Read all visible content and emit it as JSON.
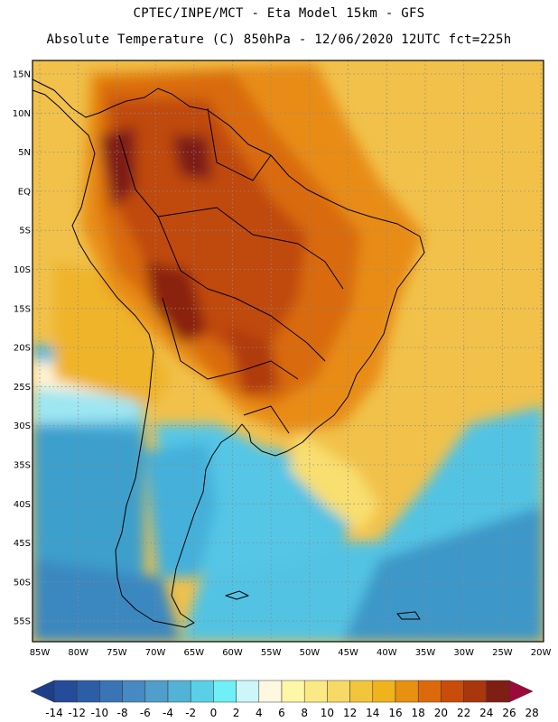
{
  "title_line1": "CPTEC/INPE/MCT -  Eta Model 15km - GFS",
  "title_line2": "Absolute Temperature (C) 850hPa - 12/06/2020 12UTC fct=225h",
  "lat_labels": [
    "15N",
    "10N",
    "5N",
    "EQ",
    "5S",
    "10S",
    "15S",
    "20S",
    "25S",
    "30S",
    "35S",
    "40S",
    "45S",
    "50S",
    "55S"
  ],
  "lon_labels": [
    "85W",
    "80W",
    "75W",
    "70W",
    "65W",
    "60W",
    "55W",
    "50W",
    "45W",
    "40W",
    "35W",
    "30W",
    "25W",
    "20W"
  ],
  "colorbar": {
    "labels": [
      "-14",
      "-12",
      "-10",
      "-8",
      "-6",
      "-4",
      "-2",
      "0",
      "2",
      "4",
      "6",
      "8",
      "10",
      "12",
      "14",
      "16",
      "18",
      "20",
      "22",
      "24",
      "26",
      "28"
    ],
    "colors": [
      "#1d3f8a",
      "#244c98",
      "#2c5ea8",
      "#3a74b5",
      "#4789c2",
      "#4f9ecc",
      "#52b3d6",
      "#5ad0e8",
      "#6ff0f6",
      "#cdf6fa",
      "#fff8e0",
      "#fff7a8",
      "#fbe985",
      "#f7d965",
      "#f3c53d",
      "#efb31d",
      "#e8900f",
      "#dc6a0c",
      "#c94c0a",
      "#a9360c",
      "#7f1f14",
      "#9c0a3a"
    ]
  }
}
